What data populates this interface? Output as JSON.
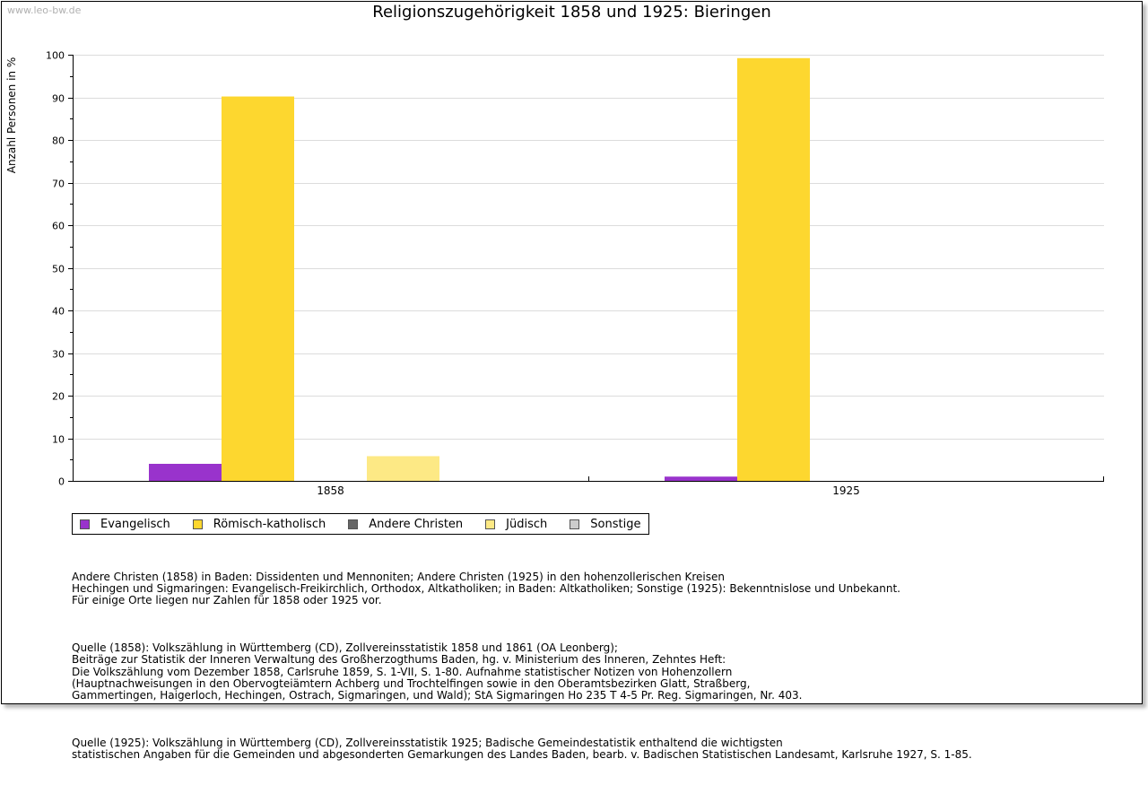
{
  "watermark": "www.leo-bw.de",
  "chart_data": {
    "type": "bar",
    "title": "Religionszugehörigkeit 1858 und 1925: Bieringen",
    "xlabel": "",
    "ylabel": "Anzahl Personen in %",
    "ylim": [
      0,
      100
    ],
    "yticks": [
      0,
      10,
      20,
      30,
      40,
      50,
      60,
      70,
      80,
      90,
      100
    ],
    "grid": true,
    "categories": [
      "1858",
      "1925"
    ],
    "series": [
      {
        "name": "Evangelisch",
        "color": "#9933cc",
        "values": [
          4.0,
          1.0
        ]
      },
      {
        "name": "Römisch-katholisch",
        "color": "#fdd72f",
        "values": [
          90.2,
          99.2
        ]
      },
      {
        "name": "Andere Christen",
        "color": "#666666",
        "values": [
          0,
          0
        ]
      },
      {
        "name": "Jüdisch",
        "color": "#fde985",
        "values": [
          5.8,
          0
        ]
      },
      {
        "name": "Sonstige",
        "color": "#cccccc",
        "values": [
          0,
          0
        ]
      }
    ],
    "legend_position": "bottom-left"
  },
  "notes": [
    "Andere Christen (1858) in Baden: Dissidenten und Mennoniten; Andere Christen (1925) in den hohenzollerischen Kreisen\nHechingen und Sigmaringen: Evangelisch-Freikirchlich, Orthodox, Altkatholiken; in Baden: Altkatholiken; Sonstige (1925): Bekenntnislose und Unbekannt.\nFür einige Orte liegen nur Zahlen für 1858 oder 1925 vor.",
    "Quelle (1858): Volkszählung in Württemberg (CD), Zollvereinsstatistik 1858 und 1861 (OA Leonberg);\nBeiträge zur Statistik der Inneren Verwaltung des Großherzogthums Baden, hg. v. Ministerium des Inneren, Zehntes Heft:\nDie Volkszählung vom Dezember 1858, Carlsruhe 1859, S. 1-VII, S. 1-80. Aufnahme statistischer Notizen von Hohenzollern\n(Hauptnachweisungen in den Obervogteiämtern Achberg und Trochtelfingen sowie in den Oberamtsbezirken Glatt, Straßberg,\nGammertingen, Haigerloch, Hechingen, Ostrach, Sigmaringen, und Wald); StA Sigmaringen Ho 235 T 4-5 Pr. Reg. Sigmaringen, Nr. 403.",
    "Quelle (1925): Volkszählung in Württemberg (CD), Zollvereinsstatistik 1925; Badische Gemeindestatistik enthaltend die wichtigsten\nstatistischen Angaben für die Gemeinden und abgesonderten Gemarkungen des Landes Baden, bearb. v. Badischen Statistischen Landesamt, Karlsruhe 1927, S. 1-85."
  ]
}
